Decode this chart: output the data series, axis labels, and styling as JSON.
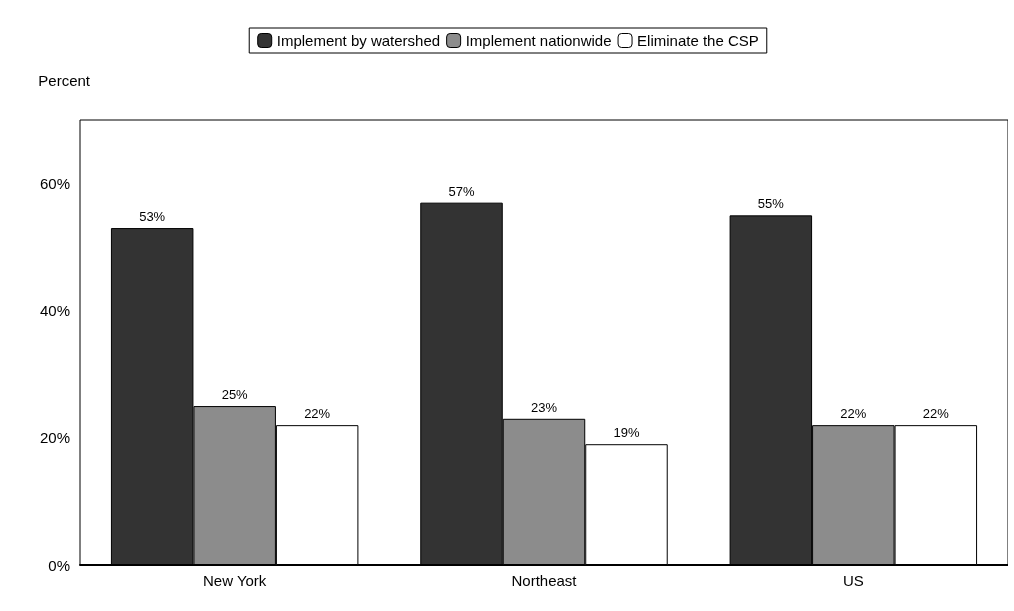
{
  "chart_data": {
    "type": "bar",
    "ylabel": "Percent",
    "categories": [
      "New York",
      "Northeast",
      "US"
    ],
    "series": [
      {
        "name": "Implement by watershed",
        "color": "#333333",
        "values": [
          53,
          57,
          55
        ],
        "value_labels": [
          "53%",
          "57%",
          "55%"
        ]
      },
      {
        "name": "Implement nationwide",
        "color": "#8c8c8c",
        "values": [
          25,
          23,
          22
        ],
        "value_labels": [
          "25%",
          "23%",
          "22%"
        ]
      },
      {
        "name": "Eliminate the CSP",
        "color": "#ffffff",
        "values": [
          22,
          19,
          22
        ],
        "value_labels": [
          "22%",
          "19%",
          "22%"
        ]
      }
    ],
    "ylim": [
      0,
      70
    ],
    "yticks": [
      {
        "value": 0,
        "label": "0%"
      },
      {
        "value": 20,
        "label": "20%"
      },
      {
        "value": 40,
        "label": "40%"
      },
      {
        "value": 60,
        "label": "60%"
      }
    ],
    "grid": false,
    "legend": "top"
  }
}
